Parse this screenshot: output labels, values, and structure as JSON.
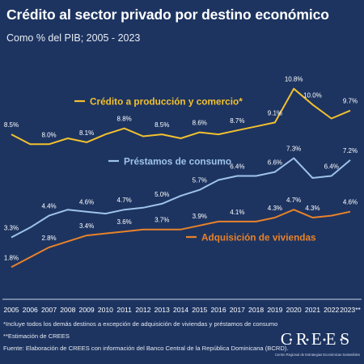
{
  "title": "Crédito al sector privado por destino económico",
  "subtitle": "Como % del PIB; 2005 - 2023",
  "footnotes": [
    "*Incluye todos los demás destinos a excepción de adquisición de viviendas y préstamos de consumo",
    "**Estimación de CREES",
    "Fuente: Elaboración de CREES con información del Banco Central de la República Dominicana (BCRD)."
  ],
  "logo": {
    "text": "CREES",
    "subtext": "Centro Regional de Estrategias Económicas Sostenibles"
  },
  "chart_data": {
    "type": "line",
    "categories": [
      "2005",
      "2006",
      "2007",
      "2008",
      "2009",
      "2010",
      "2011",
      "2012",
      "2013",
      "2014",
      "2015",
      "2016",
      "2017",
      "2018",
      "2019",
      "2020",
      "2021",
      "2022",
      "2023**"
    ],
    "ylim": [
      0,
      12
    ],
    "grid": false,
    "series": [
      {
        "name": "Crédito a producción y comercio*",
        "color": "#f2c12e",
        "values": [
          8.5,
          8.0,
          8.0,
          8.3,
          8.1,
          8.5,
          8.8,
          8.4,
          8.5,
          8.3,
          8.6,
          8.5,
          8.7,
          8.9,
          9.1,
          10.8,
          10.0,
          9.3,
          9.7
        ],
        "point_labels": {
          "0": "8.5%",
          "2": "8.0%",
          "4": "8.1%",
          "6": "8.8%",
          "8": "8.5%",
          "10": "8.6%",
          "12": "8.7%",
          "14": "9.1%",
          "15": "10.8%",
          "16": "10.0%",
          "18": "9.7%"
        }
      },
      {
        "name": "Préstamos de consumo",
        "color": "#9ec3ea",
        "values": [
          3.3,
          3.8,
          4.4,
          4.7,
          4.6,
          4.5,
          4.7,
          4.8,
          5.0,
          5.4,
          5.7,
          6.2,
          6.4,
          6.4,
          6.6,
          7.3,
          6.3,
          6.4,
          7.2
        ],
        "point_labels": {
          "0": "3.3%",
          "2": "4.4%",
          "4": "4.6%",
          "6": "4.7%",
          "8": "5.0%",
          "10": "5.7%",
          "12": "6.4%",
          "14": "6.6%",
          "15": "7.3%",
          "17": "6.4%",
          "18": "7.2%"
        }
      },
      {
        "name": "Adquisición de viviendas",
        "color": "#e8822a",
        "values": [
          1.8,
          2.3,
          2.8,
          3.1,
          3.4,
          3.5,
          3.6,
          3.7,
          3.7,
          3.7,
          3.9,
          4.1,
          4.1,
          4.1,
          4.3,
          4.7,
          4.3,
          4.4,
          4.6
        ],
        "point_labels": {
          "0": "1.8%",
          "2": "2.8%",
          "4": "3.4%",
          "6": "3.6%",
          "8": "3.7%",
          "10": "3.9%",
          "12": "4.1%",
          "14": "4.3%",
          "15": "4.7%",
          "16": "4.3%",
          "18": "4.6%"
        }
      }
    ]
  }
}
